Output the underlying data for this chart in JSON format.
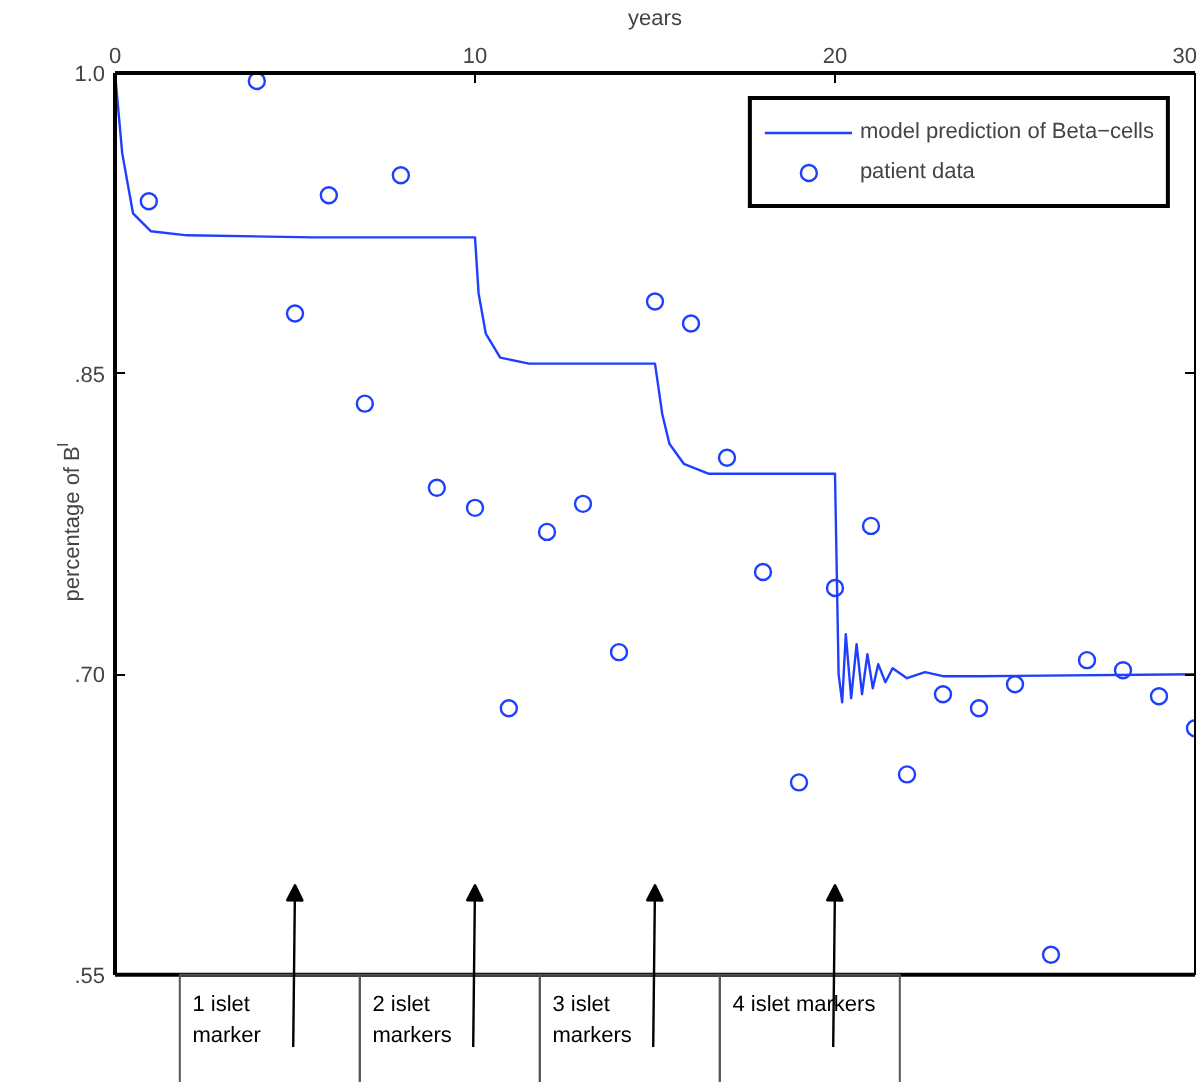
{
  "chart_data": {
    "type": "scatter",
    "xlabel": "years",
    "ylabel": "percentage of B$_{I}$",
    "xlim": [
      0,
      30
    ],
    "ylim": [
      0.55,
      1.0
    ],
    "xticks": [
      0,
      10,
      20,
      30
    ],
    "yticks": [
      {
        "value": 0.55,
        "label": ".55"
      },
      {
        "value": 0.7,
        "label": ".70"
      },
      {
        "value": 0.85,
        "label": ".85"
      },
      {
        "value": 1.0,
        "label": "1.0"
      }
    ],
    "legend": "top right",
    "grid": false,
    "series": [
      {
        "name": "model prediction of Beta−cells",
        "type": "line",
        "color": "#1f3fff",
        "marker": "none",
        "line_style": "solid",
        "x": [
          0,
          0.2,
          0.5,
          1,
          2,
          5.5,
          10,
          10.1,
          10.3,
          10.7,
          11.5,
          15,
          15.2,
          15.4,
          15.8,
          16.5,
          20,
          20.1,
          20.2,
          20.3,
          20.45,
          20.6,
          20.75,
          20.9,
          21.05,
          21.2,
          21.4,
          21.6,
          22,
          22.5,
          23,
          24,
          30
        ],
        "values": [
          1.0,
          0.96,
          0.93,
          0.921,
          0.919,
          0.918,
          0.918,
          0.89,
          0.87,
          0.858,
          0.855,
          0.855,
          0.83,
          0.815,
          0.805,
          0.8,
          0.8,
          0.7,
          0.686,
          0.72,
          0.688,
          0.715,
          0.69,
          0.71,
          0.693,
          0.705,
          0.696,
          0.703,
          0.698,
          0.701,
          0.699,
          0.699,
          0.7
        ]
      },
      {
        "name": "patient data",
        "color": "#1f3fff",
        "marker": "circle",
        "x": [
          0.94,
          3.94,
          5.0,
          5.94,
          6.94,
          7.94,
          8.94,
          10.0,
          10.94,
          12.0,
          13.0,
          14.0,
          15.0,
          16.0,
          17.0,
          18.0,
          19.0,
          20.0,
          21.0,
          22.0,
          23.0,
          24.0,
          25.0,
          26.0,
          27.0,
          28.0,
          29.0,
          30.0
        ],
        "values": [
          0.936,
          0.996,
          0.88,
          0.939,
          0.835,
          0.949,
          0.793,
          0.783,
          0.683,
          0.771,
          0.785,
          0.711,
          0.886,
          0.875,
          0.808,
          0.751,
          0.646,
          0.743,
          0.774,
          0.65,
          0.69,
          0.683,
          0.695,
          0.56,
          0.707,
          0.702,
          0.689,
          0.673
        ]
      }
    ],
    "annotations": [
      "1 islet\nmarker",
      "2 islet\nmarkers",
      "3 islet\nmarkers",
      "4 islet markers"
    ]
  }
}
